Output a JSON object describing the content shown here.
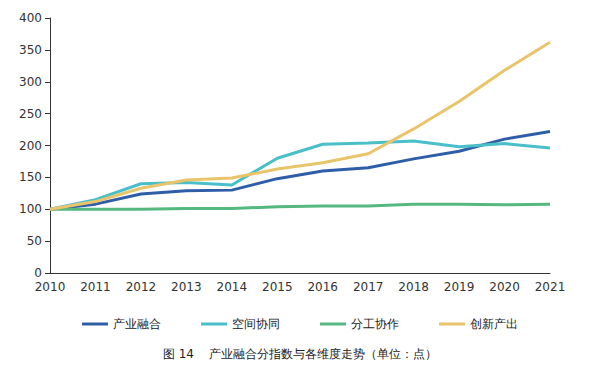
{
  "chart_data": {
    "type": "line",
    "title": "图 14    产业融合分指数与各维度走势（单位：点）",
    "categories": [
      "2010",
      "2011",
      "2012",
      "2013",
      "2014",
      "2015",
      "2016",
      "2017",
      "2018",
      "2019",
      "2020",
      "2021"
    ],
    "series": [
      {
        "name": "产业融合",
        "color": "#2f5ea8",
        "values": [
          100,
          108,
          124,
          129,
          130,
          148,
          160,
          165,
          179,
          191,
          210,
          222
        ]
      },
      {
        "name": "空间协同",
        "color": "#4bbfc9",
        "values": [
          100,
          115,
          140,
          142,
          138,
          180,
          202,
          204,
          207,
          198,
          203,
          196
        ]
      },
      {
        "name": "分工协作",
        "color": "#55b87f",
        "values": [
          100,
          100,
          100,
          101,
          101,
          104,
          105,
          105,
          108,
          108,
          107,
          108
        ]
      },
      {
        "name": "创新产出",
        "color": "#e9c46a",
        "values": [
          100,
          112,
          133,
          146,
          149,
          163,
          173,
          187,
          226,
          269,
          318,
          362
        ]
      }
    ],
    "ylim": [
      0,
      400
    ],
    "yticks": [
      0,
      50,
      100,
      150,
      200,
      250,
      300,
      350,
      400
    ],
    "grid": false,
    "legend": "bottom"
  }
}
